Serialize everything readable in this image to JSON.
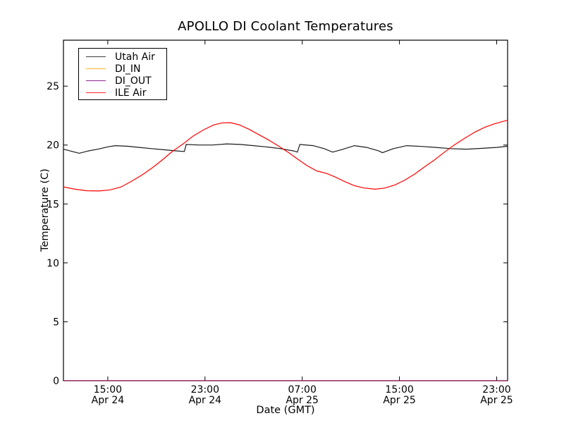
{
  "chart_data": {
    "type": "line",
    "title": "APOLLO DI Coolant Temperatures",
    "xlabel": "Date (GMT)",
    "ylabel": "Temperature (C)",
    "x_unit": "hours since Apr 24 00:00 GMT",
    "xlim_hours": [
      11.35,
      47.9
    ],
    "ylim": [
      0,
      28.9
    ],
    "grid": false,
    "legend_position": "upper left",
    "axis_color": "#000000",
    "x_ticks": [
      {
        "hour": 15,
        "time": "15:00",
        "date": "Apr 24"
      },
      {
        "hour": 23,
        "time": "23:00",
        "date": "Apr 24"
      },
      {
        "hour": 31,
        "time": "07:00",
        "date": "Apr 25"
      },
      {
        "hour": 39,
        "time": "15:00",
        "date": "Apr 25"
      },
      {
        "hour": 47,
        "time": "23:00",
        "date": "Apr 25"
      }
    ],
    "y_ticks": [
      0,
      5,
      10,
      15,
      20,
      25
    ],
    "series": [
      {
        "name": "Utah Air",
        "color": "#1a1a1a",
        "points": [
          [
            11.35,
            19.65
          ],
          [
            11.9,
            19.5
          ],
          [
            12.65,
            19.3
          ],
          [
            13.4,
            19.5
          ],
          [
            14.2,
            19.65
          ],
          [
            15.0,
            19.85
          ],
          [
            15.6,
            19.95
          ],
          [
            16.6,
            19.9
          ],
          [
            17.6,
            19.8
          ],
          [
            18.6,
            19.7
          ],
          [
            19.6,
            19.6
          ],
          [
            20.7,
            19.5
          ],
          [
            21.3,
            19.45
          ],
          [
            21.45,
            20.05
          ],
          [
            22.5,
            20.0
          ],
          [
            23.6,
            20.0
          ],
          [
            24.8,
            20.1
          ],
          [
            25.9,
            20.05
          ],
          [
            27.0,
            19.95
          ],
          [
            28.0,
            19.85
          ],
          [
            29.2,
            19.7
          ],
          [
            30.3,
            19.5
          ],
          [
            30.6,
            19.4
          ],
          [
            30.8,
            20.05
          ],
          [
            31.9,
            19.95
          ],
          [
            32.8,
            19.7
          ],
          [
            33.5,
            19.4
          ],
          [
            34.2,
            19.6
          ],
          [
            35.3,
            19.95
          ],
          [
            36.3,
            19.8
          ],
          [
            37.3,
            19.5
          ],
          [
            37.6,
            19.35
          ],
          [
            38.5,
            19.7
          ],
          [
            39.6,
            19.95
          ],
          [
            40.8,
            19.88
          ],
          [
            42.0,
            19.8
          ],
          [
            43.2,
            19.7
          ],
          [
            44.5,
            19.65
          ],
          [
            45.8,
            19.72
          ],
          [
            47.0,
            19.8
          ],
          [
            47.9,
            19.9
          ]
        ]
      },
      {
        "name": "DI_IN",
        "color": "#ffa500",
        "points": [
          [
            11.35,
            0
          ],
          [
            47.9,
            0
          ]
        ]
      },
      {
        "name": "DI_OUT",
        "color": "#800080",
        "points": [
          [
            11.35,
            0
          ],
          [
            47.9,
            0
          ]
        ]
      },
      {
        "name": "ILE Air",
        "color": "#ff0000",
        "points": [
          [
            11.35,
            16.45
          ],
          [
            12.3,
            16.25
          ],
          [
            13.3,
            16.12
          ],
          [
            14.3,
            16.1
          ],
          [
            15.2,
            16.2
          ],
          [
            16.1,
            16.45
          ],
          [
            16.9,
            16.9
          ],
          [
            17.8,
            17.45
          ],
          [
            18.7,
            18.1
          ],
          [
            19.5,
            18.75
          ],
          [
            20.3,
            19.45
          ],
          [
            21.2,
            20.1
          ],
          [
            22.0,
            20.75
          ],
          [
            22.9,
            21.3
          ],
          [
            23.7,
            21.7
          ],
          [
            24.4,
            21.88
          ],
          [
            25.1,
            21.9
          ],
          [
            25.8,
            21.72
          ],
          [
            26.6,
            21.35
          ],
          [
            27.4,
            20.9
          ],
          [
            28.2,
            20.45
          ],
          [
            29.0,
            19.95
          ],
          [
            29.9,
            19.35
          ],
          [
            30.7,
            18.75
          ],
          [
            31.4,
            18.25
          ],
          [
            32.2,
            17.8
          ],
          [
            33.0,
            17.6
          ],
          [
            33.7,
            17.3
          ],
          [
            34.5,
            16.9
          ],
          [
            35.3,
            16.55
          ],
          [
            36.1,
            16.35
          ],
          [
            37.0,
            16.25
          ],
          [
            37.8,
            16.35
          ],
          [
            38.6,
            16.6
          ],
          [
            39.4,
            17.0
          ],
          [
            40.2,
            17.5
          ],
          [
            41.0,
            18.1
          ],
          [
            41.9,
            18.75
          ],
          [
            42.7,
            19.4
          ],
          [
            43.5,
            20.0
          ],
          [
            44.4,
            20.6
          ],
          [
            45.2,
            21.1
          ],
          [
            46.0,
            21.5
          ],
          [
            46.8,
            21.8
          ],
          [
            47.5,
            22.0
          ],
          [
            47.9,
            22.1
          ]
        ]
      }
    ]
  }
}
